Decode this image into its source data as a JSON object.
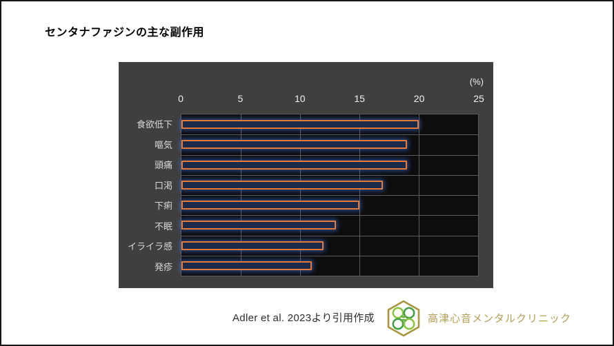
{
  "page": {
    "title": "センタナファジンの主な副作用"
  },
  "chart_data": {
    "type": "bar",
    "orientation": "horizontal",
    "title": "センタナファジンの主な副作用",
    "unit_label": "(%)",
    "categories": [
      "食欲低下",
      "嘔気",
      "頭痛",
      "口渇",
      "下痢",
      "不眠",
      "イライラ感",
      "発疹"
    ],
    "values": [
      20,
      19,
      19,
      17,
      15,
      13,
      12,
      11
    ],
    "x_ticks": [
      0,
      5,
      10,
      15,
      20,
      25
    ],
    "xlim": [
      0,
      25
    ],
    "grid": "on",
    "legend": "none",
    "colors": {
      "chart_bg": "#3f3f3f",
      "plot_bg": "#0d0d0d",
      "gridline": "#5d5d5d",
      "tick_text": "#f0f0f0",
      "category_text": "#d9d9d9",
      "bar_fill": "#1c2a4a",
      "bar_border": "#e4793a",
      "bar_glow": "#3e6ed6"
    }
  },
  "footer": {
    "citation": "Adler et al. 2023より引用作成",
    "clinic_name": "高津心音メンタルクリニック",
    "logo": {
      "icon": "hexagon-clover-icon",
      "hexagon_color": "#a8953e",
      "leaf_light": "#8cc63f",
      "leaf_dark": "#44a048",
      "text_color": "#b3a055"
    }
  }
}
